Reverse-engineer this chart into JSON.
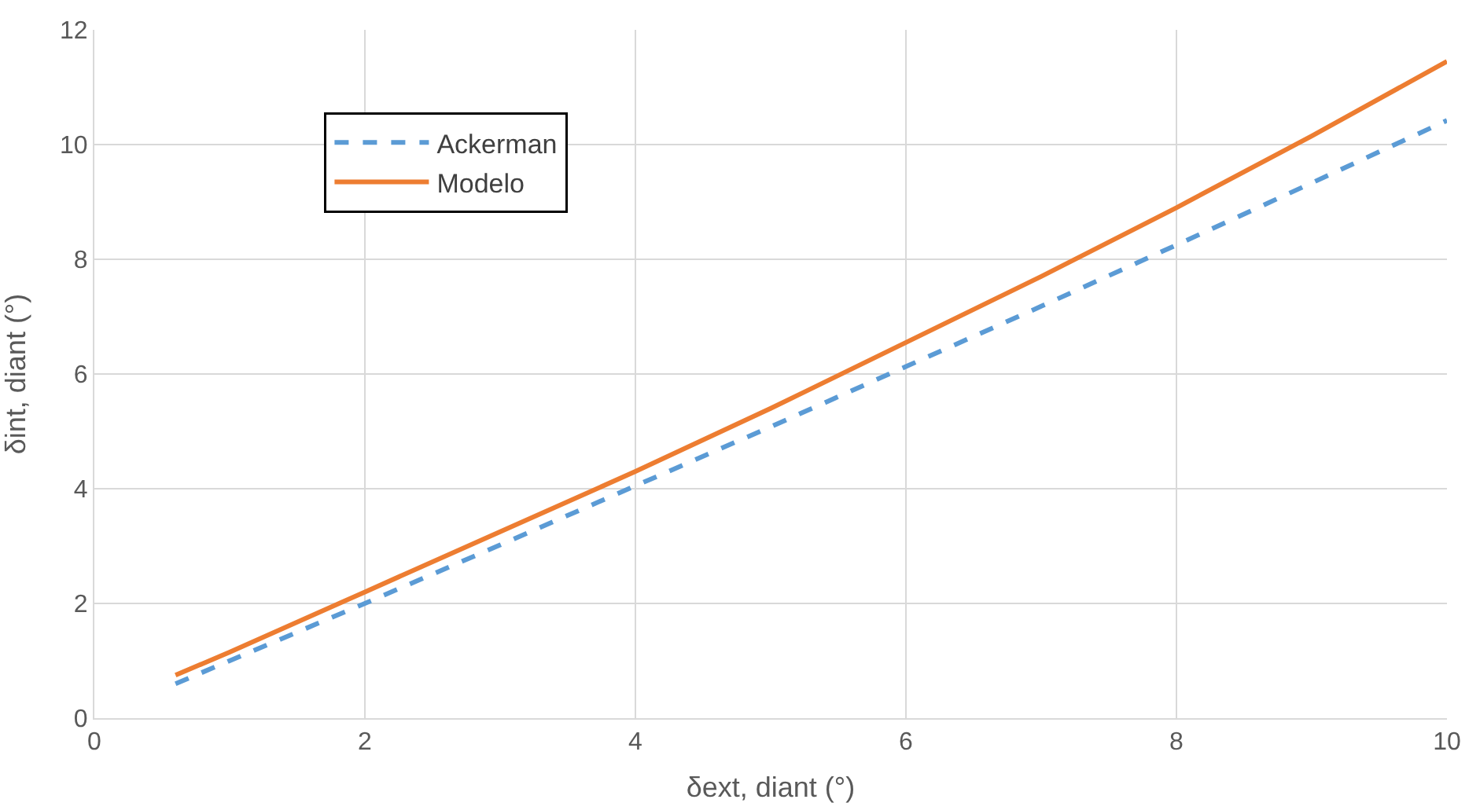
{
  "chart_data": {
    "type": "line",
    "xlabel": "δext, diant (°)",
    "ylabel": "δint, diant (°)",
    "xlim": [
      0,
      10
    ],
    "xticks": [
      0,
      2,
      4,
      6,
      8,
      10
    ],
    "ylim": [
      0,
      12
    ],
    "yticks": [
      0,
      2,
      4,
      6,
      8,
      10,
      12
    ],
    "grid": true,
    "legend": "top left",
    "marker": "none",
    "series": [
      {
        "name": "Ackerman",
        "color": "#5b9bd5",
        "line_style": "dashed",
        "x": [
          0.6,
          1,
          2,
          3,
          4,
          5,
          6,
          7,
          8,
          9,
          10
        ],
        "values": [
          0.6,
          1.0,
          2.0,
          3.02,
          4.05,
          5.08,
          6.13,
          7.18,
          8.25,
          9.33,
          10.42
        ]
      },
      {
        "name": "Modelo",
        "color": "#ed7d31",
        "line_style": "solid",
        "x": [
          0.6,
          1,
          2,
          3,
          4,
          5,
          6,
          7,
          8,
          9,
          10
        ],
        "values": [
          0.75,
          1.15,
          2.2,
          3.25,
          4.3,
          5.4,
          6.55,
          7.7,
          8.9,
          10.15,
          11.45
        ]
      }
    ]
  }
}
